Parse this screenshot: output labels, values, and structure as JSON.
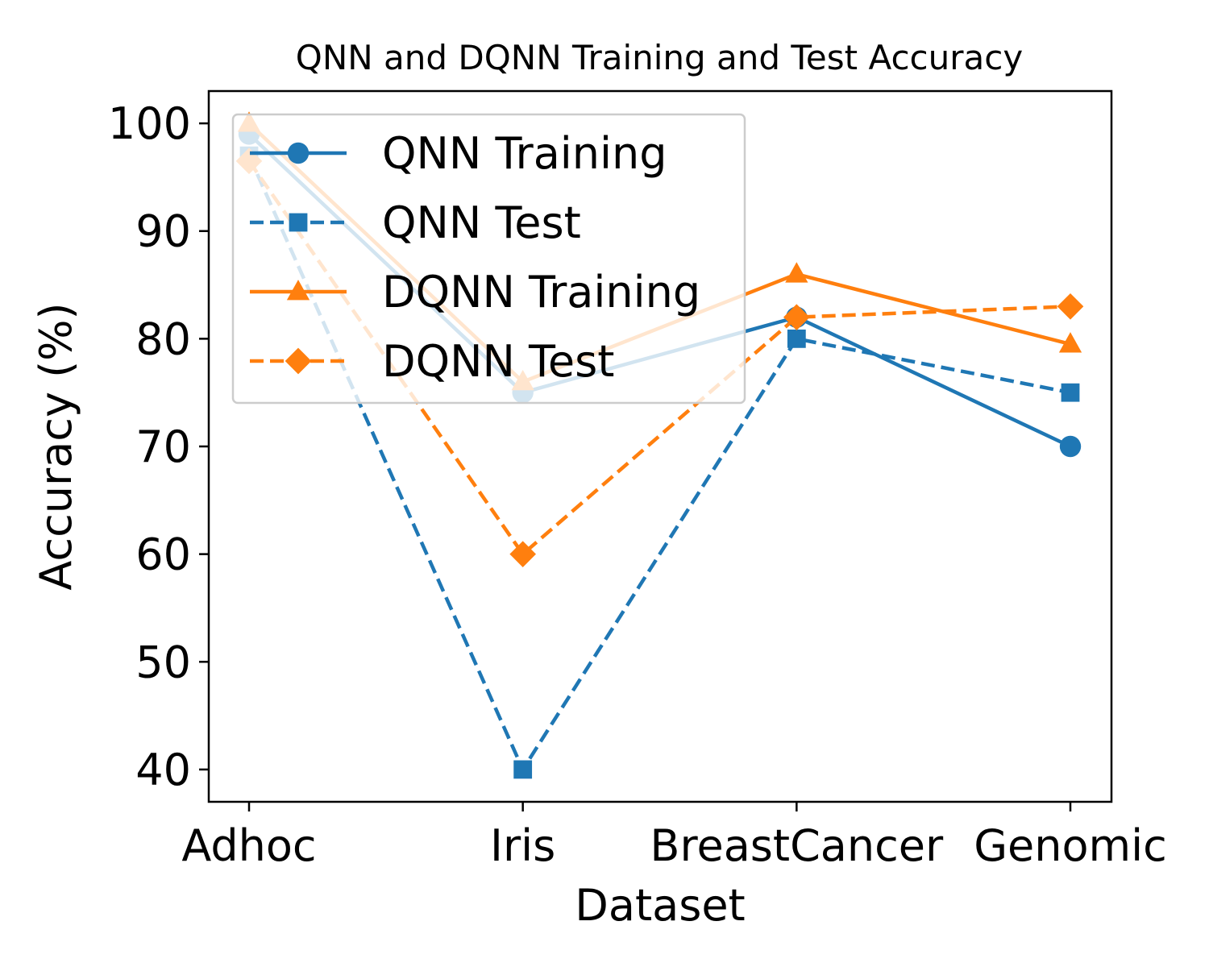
{
  "chart_data": {
    "type": "line",
    "title": "QNN and DQNN Training and Test Accuracy",
    "xlabel": "Dataset",
    "ylabel": "Accuracy (%)",
    "categories": [
      "Adhoc",
      "Iris",
      "BreastCancer",
      "Genomic"
    ],
    "ylim": [
      37,
      103
    ],
    "yticks": [
      40,
      50,
      60,
      70,
      80,
      90,
      100
    ],
    "grid": false,
    "legend_position": "upper-left",
    "series": [
      {
        "name": "QNN Training",
        "values": [
          99,
          75,
          82,
          70
        ],
        "color": "#1f77b4",
        "line_style": "solid",
        "marker": "circle"
      },
      {
        "name": "QNN Test",
        "values": [
          97,
          40,
          80,
          75
        ],
        "color": "#1f77b4",
        "line_style": "dashed",
        "marker": "square"
      },
      {
        "name": "DQNN Training",
        "values": [
          100,
          76,
          86,
          79.5
        ],
        "color": "#ff7f0e",
        "line_style": "solid",
        "marker": "triangle"
      },
      {
        "name": "DQNN Test",
        "values": [
          96.5,
          60,
          82,
          83
        ],
        "color": "#ff7f0e",
        "line_style": "dashed",
        "marker": "diamond"
      }
    ]
  }
}
